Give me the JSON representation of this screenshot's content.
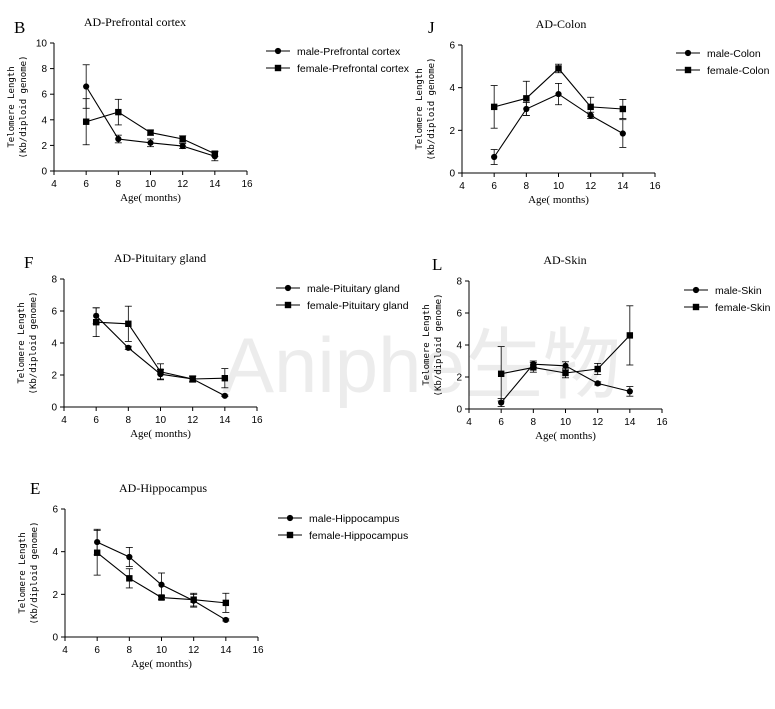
{
  "watermark": "Aniphe生物",
  "chart_data": [
    {
      "type": "line",
      "panel": "B",
      "title": "AD-Prefrontal cortex",
      "xlabel": "Age( months)",
      "ylabel": "Telomere Length (Kb/diploid genome)",
      "xlim": [
        4,
        16
      ],
      "xticks": [
        4,
        6,
        8,
        10,
        12,
        14,
        16
      ],
      "ylim": [
        0,
        10
      ],
      "yticks": [
        0,
        2,
        4,
        6,
        8,
        10
      ],
      "x": [
        6,
        8,
        10,
        12,
        14
      ],
      "series": [
        {
          "name": "male-Prefrontal cortex",
          "marker": "circle",
          "values": [
            6.6,
            2.5,
            2.2,
            1.95,
            1.15
          ],
          "err": [
            1.7,
            0.3,
            0.3,
            0.2,
            0.35
          ]
        },
        {
          "name": "female-Prefrontal cortex",
          "marker": "square",
          "values": [
            3.85,
            4.6,
            3.0,
            2.5,
            1.35
          ],
          "err": [
            1.8,
            1.0,
            0.2,
            0.25,
            0.2
          ]
        }
      ]
    },
    {
      "type": "line",
      "panel": "J",
      "title": "AD-Colon",
      "xlabel": "Age( months)",
      "ylabel": "Telomere Length (Kb/diploid genome)",
      "xlim": [
        4,
        16
      ],
      "xticks": [
        4,
        6,
        8,
        10,
        12,
        14,
        16
      ],
      "ylim": [
        0,
        6
      ],
      "yticks": [
        0,
        2,
        4,
        6
      ],
      "x": [
        6,
        8,
        10,
        12,
        14
      ],
      "series": [
        {
          "name": "male-Colon",
          "marker": "circle",
          "values": [
            0.75,
            3.0,
            3.7,
            2.7,
            1.85
          ],
          "err": [
            0.35,
            0.3,
            0.5,
            0.15,
            0.65
          ]
        },
        {
          "name": "female-Colon",
          "marker": "square",
          "values": [
            3.1,
            3.5,
            4.9,
            3.1,
            3.0
          ],
          "err": [
            1.0,
            0.8,
            0.2,
            0.45,
            0.45
          ]
        }
      ]
    },
    {
      "type": "line",
      "panel": "F",
      "title": "AD-Pituitary gland",
      "xlabel": "Age( months)",
      "ylabel": "Telomere Length (Kb/diploid genome)",
      "xlim": [
        4,
        16
      ],
      "xticks": [
        4,
        6,
        8,
        10,
        12,
        14,
        16
      ],
      "ylim": [
        0,
        8
      ],
      "yticks": [
        0,
        2,
        4,
        6,
        8
      ],
      "x": [
        6,
        8,
        10,
        12,
        14
      ],
      "series": [
        {
          "name": "male-Pituitary gland",
          "marker": "circle",
          "values": [
            5.7,
            3.7,
            2.05,
            1.75,
            0.7
          ],
          "err": [
            0.5,
            0.1,
            0.3,
            0.15,
            0.05
          ]
        },
        {
          "name": "female-Pituitary gland",
          "marker": "square",
          "values": [
            5.3,
            5.2,
            2.2,
            1.75,
            1.8
          ],
          "err": [
            0.9,
            1.1,
            0.5,
            0.2,
            0.6
          ]
        }
      ]
    },
    {
      "type": "line",
      "panel": "L",
      "title": "AD-Skin",
      "xlabel": "Age( months)",
      "ylabel": "Telomere Length (Kb/diploid genome)",
      "xlim": [
        4,
        16
      ],
      "xticks": [
        4,
        6,
        8,
        10,
        12,
        14,
        16
      ],
      "ylim": [
        0,
        8
      ],
      "yticks": [
        0,
        2,
        4,
        6,
        8
      ],
      "x": [
        6,
        8,
        10,
        12,
        14
      ],
      "series": [
        {
          "name": "male-Skin",
          "marker": "circle",
          "values": [
            0.4,
            2.8,
            2.7,
            1.6,
            1.1
          ],
          "err": [
            0.25,
            0.2,
            0.25,
            0.1,
            0.3
          ]
        },
        {
          "name": "female-Skin",
          "marker": "square",
          "values": [
            2.2,
            2.6,
            2.25,
            2.5,
            4.6
          ],
          "err": [
            1.7,
            0.3,
            0.3,
            0.35,
            1.85
          ]
        }
      ]
    },
    {
      "type": "line",
      "panel": "E",
      "title": "AD-Hippocampus",
      "xlabel": "Age( months)",
      "ylabel": "Telomere Length (Kb/diploid genome)",
      "xlim": [
        4,
        16
      ],
      "xticks": [
        4,
        6,
        8,
        10,
        12,
        14,
        16
      ],
      "ylim": [
        0,
        6
      ],
      "yticks": [
        0,
        2,
        4,
        6
      ],
      "x": [
        6,
        8,
        10,
        12,
        14
      ],
      "series": [
        {
          "name": "male-Hippocampus",
          "marker": "circle",
          "values": [
            4.45,
            3.75,
            2.45,
            1.7,
            0.8
          ],
          "err": [
            0.6,
            0.45,
            0.55,
            0.3,
            0.05
          ]
        },
        {
          "name": "female-Hippocampus",
          "marker": "square",
          "values": [
            3.95,
            2.75,
            1.85,
            1.75,
            1.6
          ],
          "err": [
            1.05,
            0.45,
            0.1,
            0.3,
            0.45
          ]
        }
      ]
    }
  ]
}
